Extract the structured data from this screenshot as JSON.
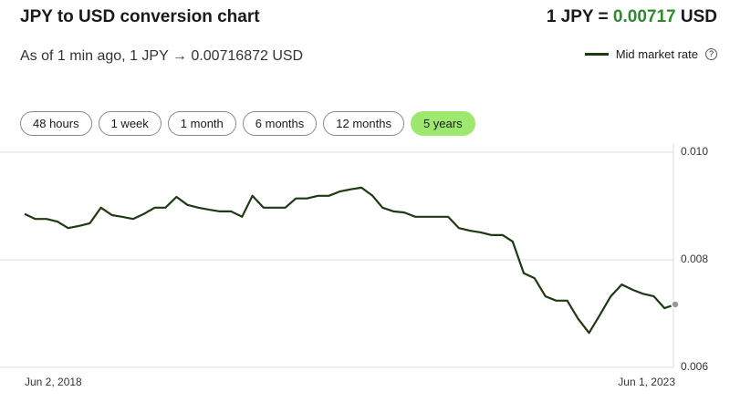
{
  "header": {
    "title": "JPY to USD conversion chart",
    "price_prefix": "1 JPY =",
    "price_value": "0.00717",
    "price_unit": "USD",
    "subtitle": "As of 1 min ago, 1 JPY → 0.00716872 USD"
  },
  "controls": [
    "48 hours",
    "1 week",
    "1 month",
    "6 months",
    "12 months",
    "5 years"
  ],
  "active_control": "5 years",
  "chart_data": {
    "type": "line",
    "x": [
      "2018-06-02",
      "2018-07-02",
      "2018-08-02",
      "2018-09-02",
      "2018-10-02",
      "2018-11-02",
      "2018-12-02",
      "2019-01-02",
      "2019-02-02",
      "2019-03-02",
      "2019-04-02",
      "2019-05-02",
      "2019-06-02",
      "2019-07-02",
      "2019-08-02",
      "2019-09-02",
      "2019-10-02",
      "2019-11-02",
      "2019-12-02",
      "2020-01-02",
      "2020-02-02",
      "2020-03-02",
      "2020-04-02",
      "2020-05-02",
      "2020-06-02",
      "2020-07-02",
      "2020-08-02",
      "2020-09-02",
      "2020-10-02",
      "2020-11-02",
      "2020-12-02",
      "2021-01-02",
      "2021-02-02",
      "2021-03-02",
      "2021-04-02",
      "2021-05-02",
      "2021-06-02",
      "2021-07-02",
      "2021-08-02",
      "2021-09-02",
      "2021-10-02",
      "2021-11-02",
      "2021-12-02",
      "2022-01-02",
      "2022-02-02",
      "2022-03-02",
      "2022-04-02",
      "2022-05-02",
      "2022-06-02",
      "2022-07-02",
      "2022-08-02",
      "2022-09-02",
      "2022-10-02",
      "2022-11-02",
      "2022-12-02",
      "2023-01-02",
      "2023-02-02",
      "2023-03-02",
      "2023-04-02",
      "2023-05-02",
      "2023-06-01"
    ],
    "series": [
      {
        "name": "Mid market rate",
        "color": "#1e3a12",
        "values": [
          0.00885,
          0.00876,
          0.00876,
          0.00871,
          0.00859,
          0.00863,
          0.00868,
          0.00897,
          0.00883,
          0.0088,
          0.00876,
          0.00885,
          0.00897,
          0.00897,
          0.00917,
          0.00902,
          0.00897,
          0.00893,
          0.0089,
          0.0089,
          0.0088,
          0.00919,
          0.00897,
          0.00897,
          0.00897,
          0.00914,
          0.00914,
          0.00919,
          0.00919,
          0.00927,
          0.00931,
          0.00934,
          0.00919,
          0.00897,
          0.0089,
          0.00888,
          0.0088,
          0.0088,
          0.0088,
          0.0088,
          0.00859,
          0.00854,
          0.00851,
          0.00846,
          0.00846,
          0.00834,
          0.00775,
          0.00766,
          0.00732,
          0.00724,
          0.00724,
          0.0069,
          0.00664,
          0.00698,
          0.00732,
          0.00754,
          0.00744,
          0.00737,
          0.00732,
          0.0071,
          0.00717
        ]
      }
    ],
    "xlim": [
      "2018-06-02",
      "2023-06-01"
    ],
    "xticks": [
      {
        "value": "2018-06-02",
        "label": "Jun 2, 2018"
      },
      {
        "value": "2023-06-01",
        "label": "Jun 1, 2023"
      }
    ],
    "ylim": [
      0.006,
      0.01
    ],
    "yticks": [
      {
        "value": 0.006,
        "label": "0.006"
      },
      {
        "value": 0.008,
        "label": "0.008"
      },
      {
        "value": 0.01,
        "label": "0.010"
      }
    ],
    "grid": true
  }
}
